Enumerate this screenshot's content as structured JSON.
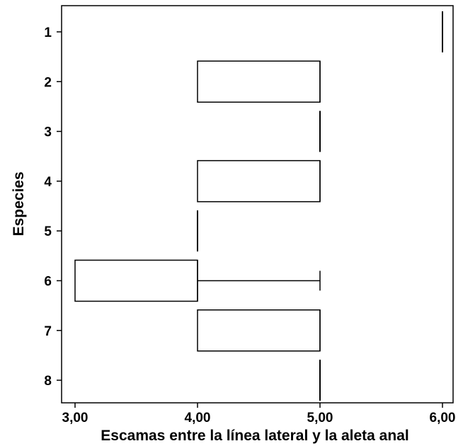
{
  "chart_data": {
    "type": "boxplot",
    "orientation": "horizontal",
    "xlabel": "Escamas entre la línea lateral y la aleta anal",
    "ylabel": "Especies",
    "xlim": [
      2.9,
      6.05
    ],
    "x_ticks": [
      {
        "value": 3,
        "label": "3,00"
      },
      {
        "value": 4,
        "label": "4,00"
      },
      {
        "value": 5,
        "label": "5,00"
      },
      {
        "value": 6,
        "label": "6,00"
      }
    ],
    "categories": [
      "1",
      "2",
      "3",
      "4",
      "5",
      "6",
      "7",
      "8"
    ],
    "boxes": [
      {
        "category": "1",
        "min": 6,
        "q1": 6,
        "median": 6,
        "q3": 6,
        "max": 6
      },
      {
        "category": "2",
        "min": 4,
        "q1": 4,
        "median": 5,
        "q3": 5,
        "max": 5
      },
      {
        "category": "3",
        "min": 5,
        "q1": 5,
        "median": 5,
        "q3": 5,
        "max": 5
      },
      {
        "category": "4",
        "min": 4,
        "q1": 4,
        "median": 5,
        "q3": 5,
        "max": 5
      },
      {
        "category": "5",
        "min": 4,
        "q1": 4,
        "median": 4,
        "q3": 4,
        "max": 4
      },
      {
        "category": "6",
        "min": 3,
        "q1": 3,
        "median": 4,
        "q3": 4,
        "max": 5
      },
      {
        "category": "7",
        "min": 4,
        "q1": 4,
        "median": 5,
        "q3": 5,
        "max": 5
      },
      {
        "category": "8",
        "min": 5,
        "q1": 5,
        "median": 5,
        "q3": 5,
        "max": 5
      }
    ],
    "grid": false,
    "legend": "none",
    "colors": {
      "box_fill": "#ffffff",
      "stroke": "#000000"
    }
  }
}
